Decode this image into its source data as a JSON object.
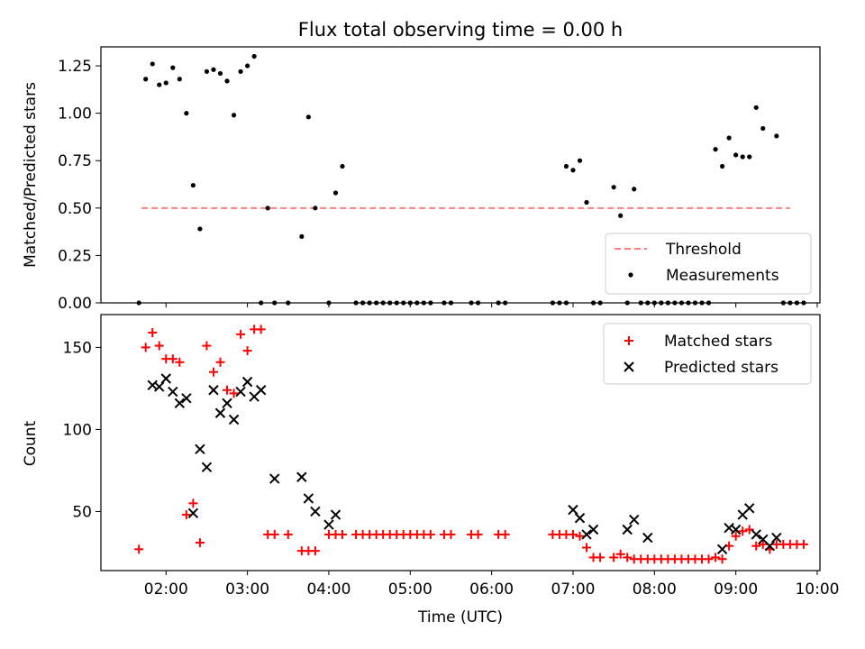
{
  "figure": {
    "title": "Flux total observing time = 0.00 h"
  },
  "colors": {
    "threshold": "#ff7f7f",
    "measurements": "#000000",
    "matched": "#ff0000",
    "predicted": "#000000"
  },
  "chart_data": [
    {
      "type": "scatter",
      "title": "Flux total observing time = 0.00 h",
      "xlabel": "",
      "ylabel": "Matched/Predicted stars",
      "xlim": [
        "01:12",
        "10:02"
      ],
      "ylim": [
        0,
        1.35
      ],
      "yticks": [
        0.0,
        0.25,
        0.5,
        0.75,
        1.0,
        1.25
      ],
      "ytick_labels": [
        "0.00",
        "0.25",
        "0.50",
        "0.75",
        "1.00",
        "1.25"
      ],
      "legend": {
        "position": "lower-right",
        "entries": [
          "Threshold",
          "Measurements"
        ]
      },
      "series": [
        {
          "name": "Threshold",
          "style": "dashed-line",
          "x": [
            "01:42",
            "09:40"
          ],
          "y": [
            0.5,
            0.5
          ]
        },
        {
          "name": "Measurements",
          "style": "dot",
          "x": [
            "01:40",
            "01:45",
            "01:50",
            "01:55",
            "02:00",
            "02:05",
            "02:10",
            "02:15",
            "02:20",
            "02:25",
            "02:30",
            "02:35",
            "02:40",
            "02:45",
            "02:50",
            "02:55",
            "03:00",
            "03:05",
            "03:10",
            "03:15",
            "03:20",
            "03:30",
            "03:40",
            "03:45",
            "03:50",
            "04:00",
            "04:05",
            "04:10",
            "04:20",
            "04:25",
            "04:30",
            "04:35",
            "04:40",
            "04:45",
            "04:50",
            "04:55",
            "05:00",
            "05:05",
            "05:10",
            "05:15",
            "05:25",
            "05:30",
            "05:45",
            "05:50",
            "06:05",
            "06:10",
            "06:45",
            "06:50",
            "06:55",
            "06:55",
            "07:00",
            "07:05",
            "07:10",
            "07:15",
            "07:20",
            "07:30",
            "07:35",
            "07:40",
            "07:45",
            "07:50",
            "07:55",
            "08:00",
            "08:05",
            "08:10",
            "08:15",
            "08:20",
            "08:25",
            "08:30",
            "08:35",
            "08:40",
            "08:45",
            "08:50",
            "08:55",
            "09:00",
            "09:05",
            "09:10",
            "09:15",
            "09:20",
            "09:30",
            "09:35",
            "09:40",
            "09:45",
            "09:50"
          ],
          "y": [
            0.0,
            1.18,
            1.26,
            1.15,
            1.16,
            1.24,
            1.18,
            1.0,
            0.62,
            0.39,
            1.22,
            1.23,
            1.21,
            1.17,
            0.99,
            1.22,
            1.25,
            1.3,
            0.0,
            0.5,
            0.0,
            0.0,
            0.35,
            0.98,
            0.5,
            0.0,
            0.58,
            0.72,
            0.0,
            0.0,
            0.0,
            0.0,
            0.0,
            0.0,
            0.0,
            0.0,
            0.0,
            0.0,
            0.0,
            0.0,
            0.0,
            0.0,
            0.0,
            0.0,
            0.0,
            0.0,
            0.0,
            0.0,
            0.0,
            0.72,
            0.7,
            0.75,
            0.53,
            0.0,
            0.0,
            0.61,
            0.46,
            0.0,
            0.6,
            0.0,
            0.0,
            0.0,
            0.0,
            0.0,
            0.0,
            0.0,
            0.0,
            0.0,
            0.0,
            0.0,
            0.81,
            0.72,
            0.87,
            0.78,
            0.77,
            0.77,
            1.03,
            0.92,
            0.88,
            0.0,
            0.0,
            0.0,
            0.0
          ]
        }
      ]
    },
    {
      "type": "scatter",
      "xlabel": "Time (UTC)",
      "ylabel": "Count",
      "xlim": [
        "01:12",
        "10:02"
      ],
      "ylim": [
        14,
        170
      ],
      "xticks": [
        "02:00",
        "03:00",
        "04:00",
        "05:00",
        "06:00",
        "07:00",
        "08:00",
        "09:00",
        "10:00"
      ],
      "yticks": [
        50,
        100,
        150
      ],
      "legend": {
        "position": "top-right",
        "entries": [
          "Matched stars",
          "Predicted stars"
        ]
      },
      "series": [
        {
          "name": "Matched stars",
          "style": "plus",
          "x": [
            "01:40",
            "01:45",
            "01:50",
            "01:55",
            "02:00",
            "02:05",
            "02:10",
            "02:15",
            "02:20",
            "02:25",
            "02:30",
            "02:35",
            "02:40",
            "02:45",
            "02:50",
            "02:55",
            "03:00",
            "03:05",
            "03:10",
            "03:15",
            "03:20",
            "03:30",
            "03:40",
            "03:45",
            "03:50",
            "04:00",
            "04:05",
            "04:10",
            "04:20",
            "04:25",
            "04:30",
            "04:35",
            "04:40",
            "04:45",
            "04:50",
            "04:55",
            "05:00",
            "05:05",
            "05:10",
            "05:15",
            "05:25",
            "05:30",
            "05:45",
            "05:50",
            "06:05",
            "06:10",
            "06:45",
            "06:50",
            "06:55",
            "07:00",
            "07:05",
            "07:10",
            "07:15",
            "07:20",
            "07:30",
            "07:35",
            "07:40",
            "07:45",
            "07:50",
            "07:55",
            "08:00",
            "08:05",
            "08:10",
            "08:15",
            "08:20",
            "08:25",
            "08:30",
            "08:35",
            "08:40",
            "08:45",
            "08:50",
            "08:55",
            "09:00",
            "09:05",
            "09:10",
            "09:15",
            "09:20",
            "09:25",
            "09:30",
            "09:35",
            "09:40",
            "09:45",
            "09:50"
          ],
          "y": [
            27,
            150,
            159,
            151,
            143,
            143,
            141,
            48,
            55,
            31,
            151,
            135,
            141,
            124,
            122,
            158,
            148,
            161,
            161,
            36,
            36,
            36,
            26,
            26,
            26,
            36,
            36,
            36,
            36,
            36,
            36,
            36,
            36,
            36,
            36,
            36,
            36,
            36,
            36,
            36,
            36,
            36,
            36,
            36,
            36,
            36,
            36,
            36,
            36,
            36,
            35,
            28,
            22,
            22,
            22,
            24,
            22,
            21,
            21,
            21,
            21,
            21,
            21,
            21,
            21,
            21,
            21,
            21,
            21,
            22,
            21,
            29,
            35,
            38,
            39,
            29,
            30,
            27,
            30,
            30,
            30,
            30,
            30
          ]
        },
        {
          "name": "Predicted stars",
          "style": "x",
          "x": [
            "01:50",
            "01:55",
            "02:00",
            "02:05",
            "02:10",
            "02:15",
            "02:20",
            "02:25",
            "02:30",
            "02:35",
            "02:40",
            "02:45",
            "02:50",
            "02:55",
            "03:00",
            "03:05",
            "03:10",
            "03:20",
            "03:40",
            "03:45",
            "03:50",
            "04:00",
            "04:05",
            "07:00",
            "07:05",
            "07:10",
            "07:15",
            "07:40",
            "07:45",
            "07:55",
            "08:50",
            "08:55",
            "09:00",
            "09:05",
            "09:10",
            "09:15",
            "09:20",
            "09:25",
            "09:30"
          ],
          "y": [
            127,
            126,
            131,
            123,
            116,
            119,
            49,
            88,
            77,
            124,
            110,
            116,
            106,
            123,
            129,
            120,
            124,
            70,
            71,
            58,
            50,
            42,
            48,
            51,
            46,
            36,
            39,
            39,
            45,
            34,
            27,
            40,
            39,
            48,
            52,
            36,
            33,
            29,
            34
          ]
        }
      ]
    }
  ]
}
